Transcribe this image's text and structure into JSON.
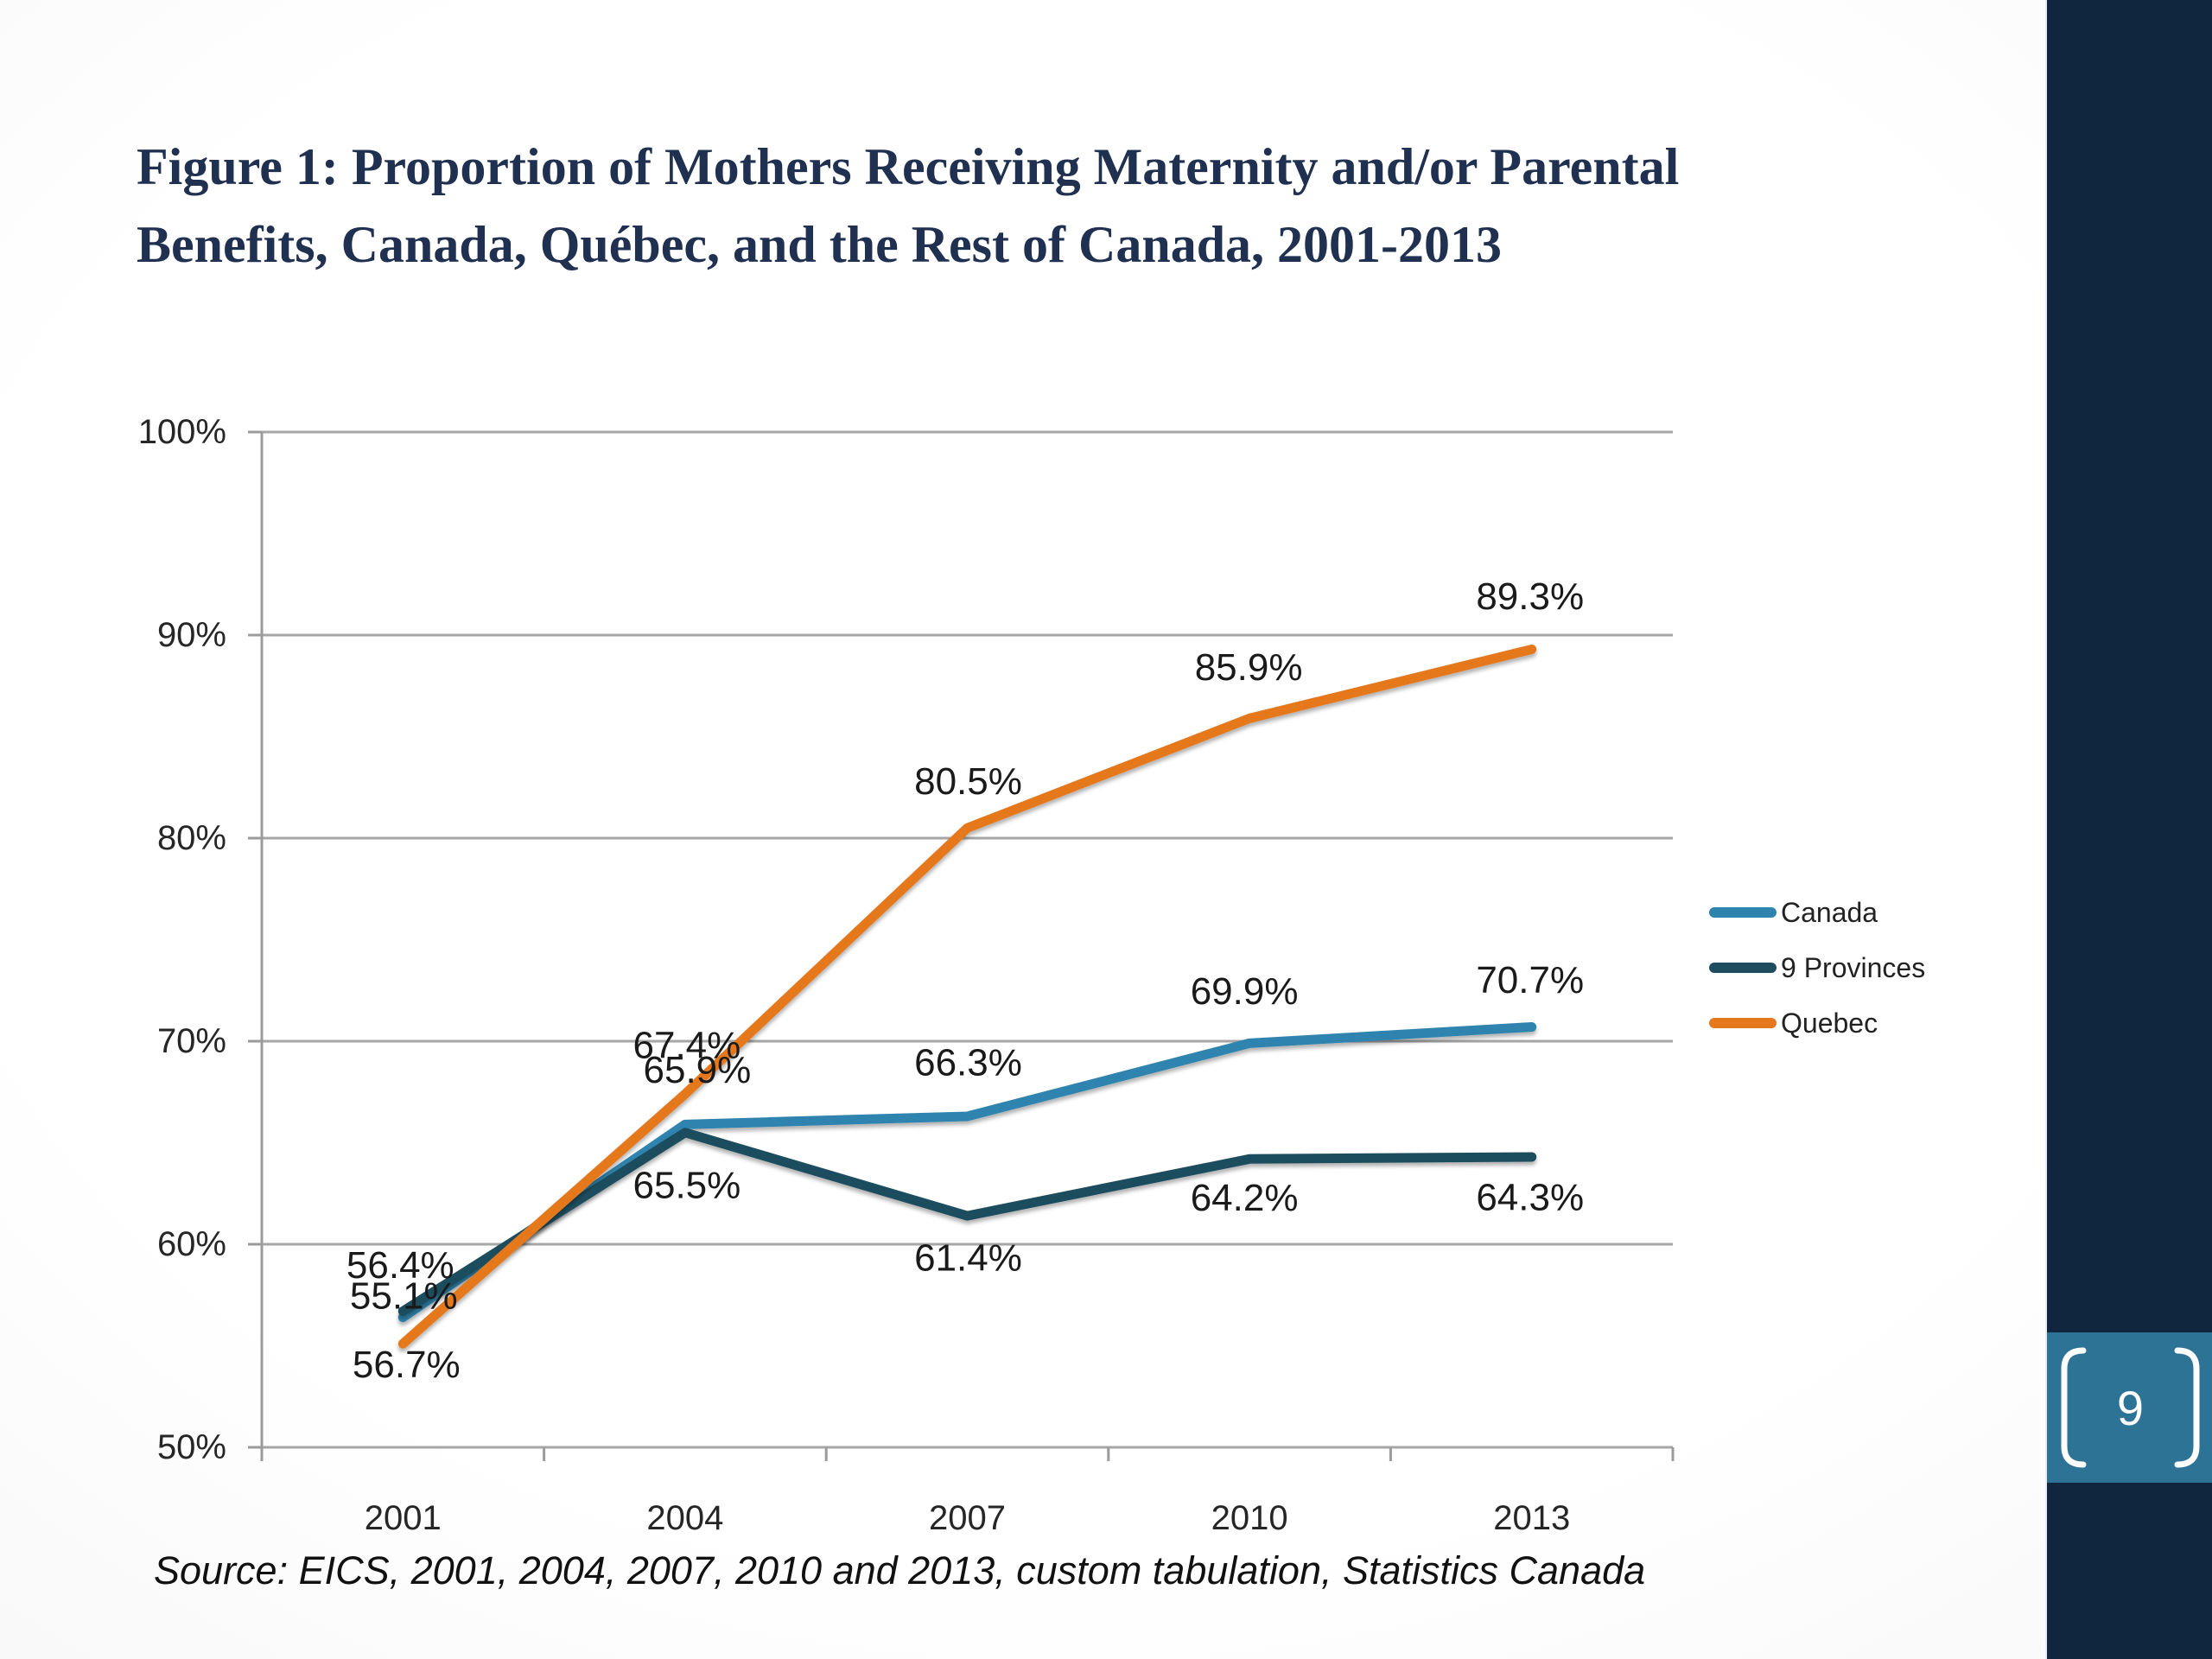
{
  "slide": {
    "title_line1": "Figure 1: Proportion of Mothers Receiving Maternity and/or Parental",
    "title_line2": "Benefits, Canada, Québec, and the Rest of Canada, 2001-2013",
    "source_note": "Source: EICS, 2001, 2004, 2007, 2010 and 2013, custom tabulation, Statistics Canada",
    "page_number": "9"
  },
  "colors": {
    "title_text": "#1F3050",
    "gridline": "#A6A6A6",
    "axis_line": "#9B9B9B",
    "axis_text": "#262626",
    "data_label_text": "#1A1A1A",
    "sidebar": "#10253E",
    "badge": "#2D7396",
    "badge_text": "#FFFFFF"
  },
  "chart_data": {
    "type": "line",
    "title": "",
    "xlabel": "",
    "ylabel": "",
    "categories": [
      "2001",
      "2004",
      "2007",
      "2010",
      "2013"
    ],
    "y_ticks": [
      "100%",
      "90%",
      "80%",
      "70%",
      "60%",
      "50%"
    ],
    "ylim": [
      50,
      100
    ],
    "grid": "horizontal",
    "legend_position": "right",
    "series": [
      {
        "name": "Canada",
        "color": "#2E84AE",
        "values": [
          56.4,
          65.9,
          66.3,
          69.9,
          70.7
        ],
        "labels": [
          "56.4%",
          "65.9%",
          "66.3%",
          "69.9%",
          "70.7%"
        ],
        "label_dx": [
          -3,
          14,
          1,
          -6,
          -2
        ],
        "label_dy": [
          -60,
          -63,
          -62,
          -60,
          -54
        ]
      },
      {
        "name": "9 Provinces",
        "color": "#1F4D5F",
        "values": [
          56.7,
          65.5,
          61.4,
          64.2,
          64.3
        ],
        "labels": [
          "56.7%",
          "65.5%",
          "61.4%",
          "64.2%",
          "64.3%"
        ],
        "label_dx": [
          4,
          2,
          1,
          -6,
          -2
        ],
        "label_dy": [
          62,
          61,
          49,
          45,
          47
        ]
      },
      {
        "name": "Quebec",
        "color": "#E6781E",
        "values": [
          55.1,
          67.4,
          80.5,
          85.9,
          89.3
        ],
        "labels": [
          "55.1%",
          "67.4%",
          "80.5%",
          "85.9%",
          "89.3%"
        ],
        "label_dx": [
          1,
          2,
          1,
          -1,
          -2
        ],
        "label_dy": [
          -55,
          -56,
          -54,
          -59,
          -61
        ]
      }
    ]
  }
}
